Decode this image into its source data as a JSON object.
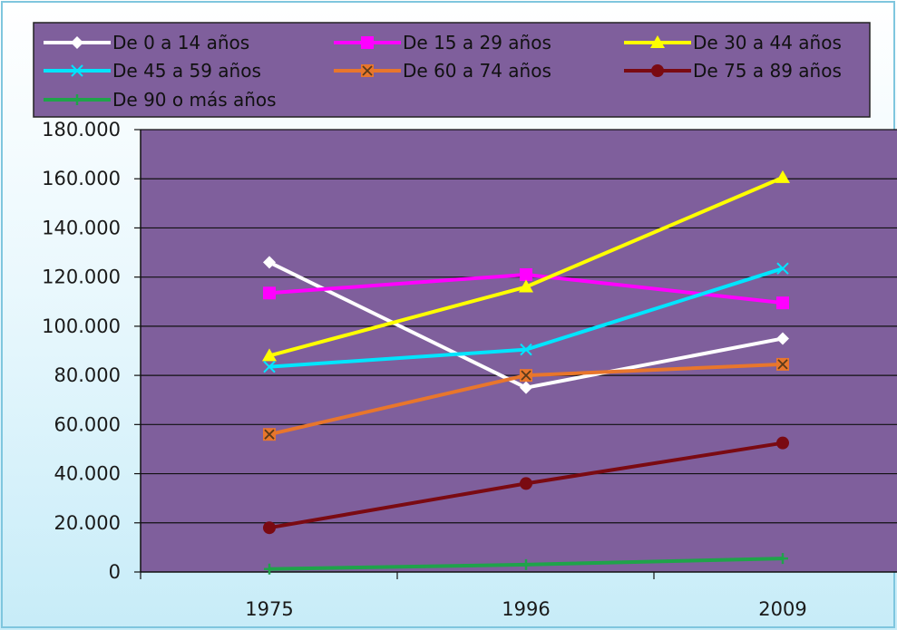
{
  "chart_data": {
    "type": "line",
    "title": "",
    "xlabel": "",
    "ylabel": "",
    "categories": [
      "1975",
      "1996",
      "2009"
    ],
    "ylim": [
      0,
      180000
    ],
    "yticks": [
      0,
      20000,
      40000,
      60000,
      80000,
      100000,
      120000,
      140000,
      160000,
      180000
    ],
    "ytick_labels": [
      "0",
      "20.000",
      "40.000",
      "60.000",
      "80.000",
      "100.000",
      "120.000",
      "140.000",
      "160.000",
      "180.000"
    ],
    "grid": true,
    "legend_position": "top",
    "plot_background": "#7f5f9c",
    "series": [
      {
        "name": "De 0 a 14 años",
        "values": [
          126000,
          75000,
          95000
        ],
        "color": "#ffffff",
        "marker": "diamond"
      },
      {
        "name": "De 15 a 29 años",
        "values": [
          113500,
          121000,
          109500
        ],
        "color": "#ff00ff",
        "marker": "square"
      },
      {
        "name": "De 30 a 44 años",
        "values": [
          88000,
          116000,
          160500
        ],
        "color": "#ffff00",
        "marker": "triangle"
      },
      {
        "name": "De 45 a 59 años",
        "values": [
          83500,
          90500,
          123500
        ],
        "color": "#00e5ff",
        "marker": "x"
      },
      {
        "name": "De 60 a 74 años",
        "values": [
          56000,
          80000,
          84500
        ],
        "color": "#e8762c",
        "marker": "xsquare"
      },
      {
        "name": "De 75 a 89 años",
        "values": [
          18000,
          36000,
          52500
        ],
        "color": "#7a0a12",
        "marker": "circle"
      },
      {
        "name": "De 90 o más años",
        "values": [
          1200,
          3000,
          5500
        ],
        "color": "#1fa34a",
        "marker": "plus"
      }
    ]
  }
}
